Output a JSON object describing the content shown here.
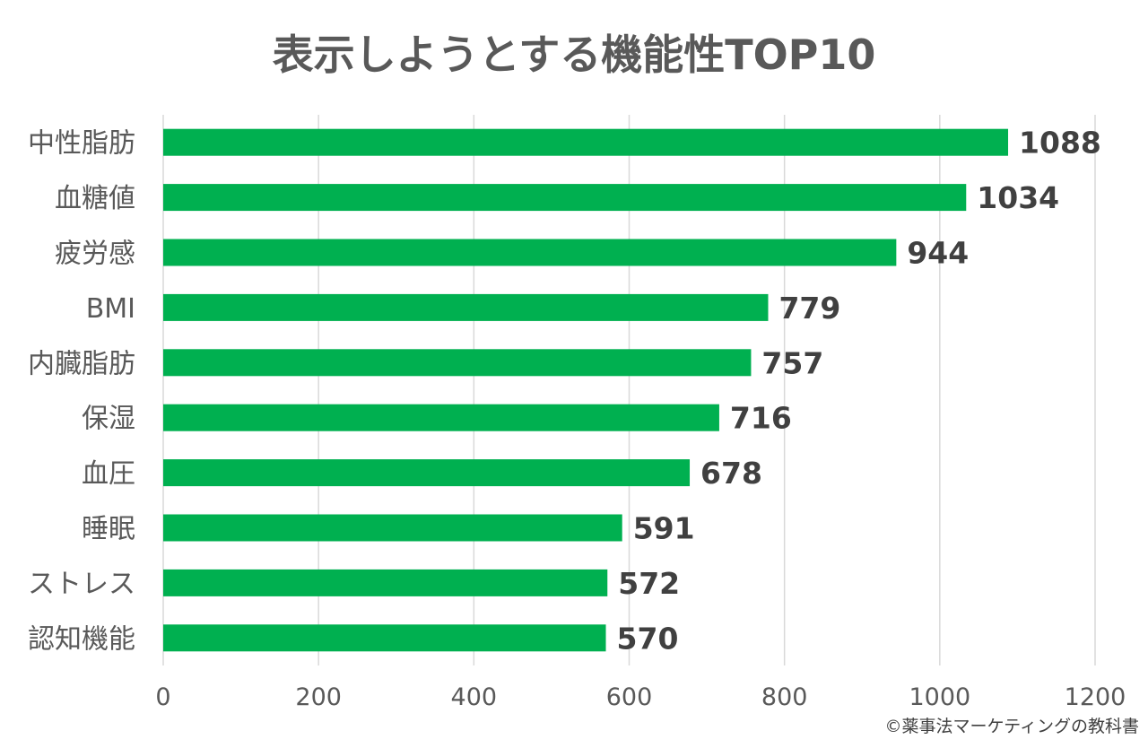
{
  "chart_data": {
    "type": "bar",
    "orientation": "horizontal",
    "title": "表示しようとする機能性TOP10",
    "categories": [
      "中性脂肪",
      "血糖値",
      "疲労感",
      "BMI",
      "内臓脂肪",
      "保湿",
      "血圧",
      "睡眠",
      "ストレス",
      "認知機能"
    ],
    "values": [
      1088,
      1034,
      944,
      779,
      757,
      716,
      678,
      591,
      572,
      570
    ],
    "xlim": [
      0,
      1200
    ],
    "xticks": [
      0,
      200,
      400,
      600,
      800,
      1000,
      1200
    ],
    "xlabel": "",
    "ylabel": "",
    "grid": "vertical",
    "bar_color": "#00B050",
    "data_labels": true
  },
  "credit": "©薬事法マーケティングの教科書"
}
